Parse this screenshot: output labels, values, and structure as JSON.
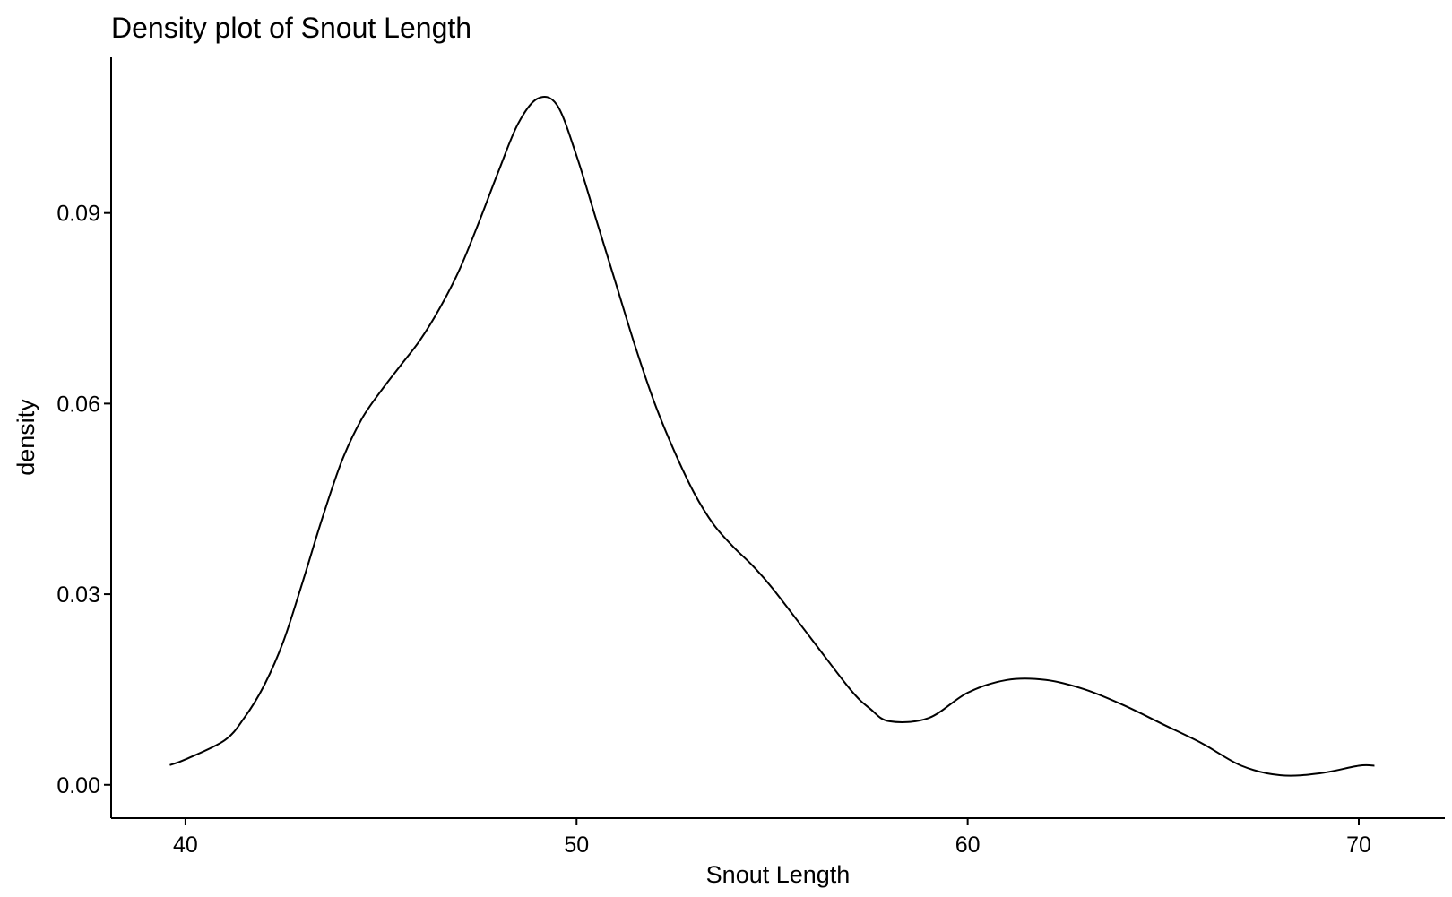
{
  "chart_data": {
    "type": "line",
    "title": "Density plot of Snout Length",
    "xlabel": "Snout Length",
    "ylabel": "density",
    "xlim": [
      38.1,
      72.2
    ],
    "ylim": [
      -0.00525,
      0.1145
    ],
    "x_ticks": [
      40,
      50,
      60,
      70
    ],
    "x_tick_labels": [
      "40",
      "50",
      "60",
      "70"
    ],
    "y_ticks": [
      0.0,
      0.03,
      0.06,
      0.09
    ],
    "y_tick_labels": [
      "0.00",
      "0.03",
      "0.06",
      "0.09"
    ],
    "grid": false,
    "legend": "none",
    "line_color": "#000000",
    "series": [
      {
        "x": [
          39.6,
          40.0,
          41.0,
          41.5,
          42.0,
          42.5,
          43.0,
          43.5,
          44.0,
          44.5,
          45.0,
          45.5,
          46.0,
          46.5,
          47.0,
          47.5,
          48.0,
          48.5,
          49.0,
          49.5,
          50.0,
          50.5,
          51.0,
          51.5,
          52.0,
          52.5,
          53.0,
          53.5,
          54.0,
          54.5,
          55.0,
          56.0,
          57.0,
          57.5,
          58.0,
          59.0,
          60.0,
          61.0,
          62.0,
          63.0,
          64.0,
          65.0,
          66.0,
          67.0,
          68.0,
          69.0,
          70.0,
          70.4
        ],
        "y": [
          0.0031,
          0.004,
          0.007,
          0.0105,
          0.0155,
          0.0225,
          0.032,
          0.042,
          0.051,
          0.0575,
          0.062,
          0.066,
          0.07,
          0.075,
          0.081,
          0.0885,
          0.0965,
          0.104,
          0.108,
          0.107,
          0.099,
          0.089,
          0.079,
          0.069,
          0.06,
          0.0525,
          0.046,
          0.041,
          0.0375,
          0.0345,
          0.031,
          0.023,
          0.015,
          0.012,
          0.01,
          0.0105,
          0.0145,
          0.0165,
          0.0165,
          0.015,
          0.0125,
          0.0095,
          0.0065,
          0.003,
          0.0015,
          0.0018,
          0.003,
          0.003
        ]
      }
    ]
  }
}
